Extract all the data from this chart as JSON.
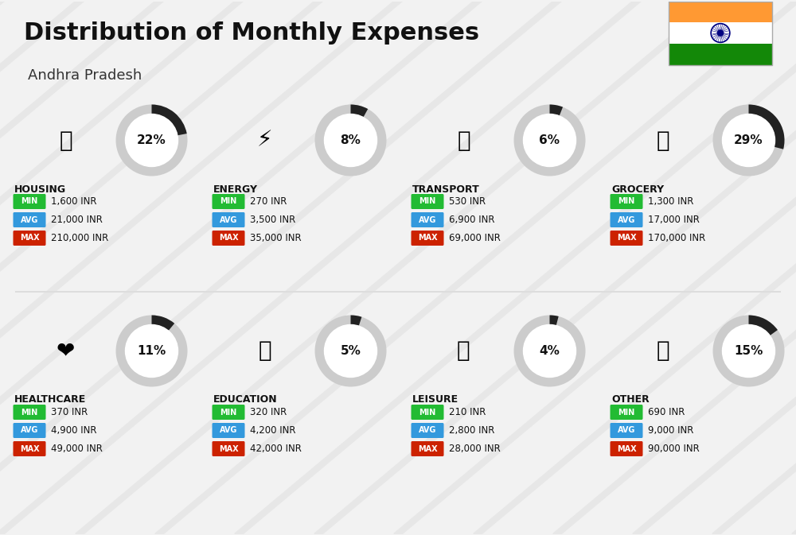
{
  "title": "Distribution of Monthly Expenses",
  "subtitle": "Andhra Pradesh",
  "background_color": "#f2f2f2",
  "categories": [
    {
      "name": "HOUSING",
      "percent": 22,
      "min_val": "1,600 INR",
      "avg_val": "21,000 INR",
      "max_val": "210,000 INR",
      "icon": "🏙",
      "row": 0,
      "col": 0
    },
    {
      "name": "ENERGY",
      "percent": 8,
      "min_val": "270 INR",
      "avg_val": "3,500 INR",
      "max_val": "35,000 INR",
      "icon": "⚡",
      "row": 0,
      "col": 1
    },
    {
      "name": "TRANSPORT",
      "percent": 6,
      "min_val": "530 INR",
      "avg_val": "6,900 INR",
      "max_val": "69,000 INR",
      "icon": "🚌",
      "row": 0,
      "col": 2
    },
    {
      "name": "GROCERY",
      "percent": 29,
      "min_val": "1,300 INR",
      "avg_val": "17,000 INR",
      "max_val": "170,000 INR",
      "icon": "🛒",
      "row": 0,
      "col": 3
    },
    {
      "name": "HEALTHCARE",
      "percent": 11,
      "min_val": "370 INR",
      "avg_val": "4,900 INR",
      "max_val": "49,000 INR",
      "icon": "❤️",
      "row": 1,
      "col": 0
    },
    {
      "name": "EDUCATION",
      "percent": 5,
      "min_val": "320 INR",
      "avg_val": "4,200 INR",
      "max_val": "42,000 INR",
      "icon": "🎓",
      "row": 1,
      "col": 1
    },
    {
      "name": "LEISURE",
      "percent": 4,
      "min_val": "210 INR",
      "avg_val": "2,800 INR",
      "max_val": "28,000 INR",
      "icon": "🛍️",
      "row": 1,
      "col": 2
    },
    {
      "name": "OTHER",
      "percent": 15,
      "min_val": "690 INR",
      "avg_val": "9,000 INR",
      "max_val": "90,000 INR",
      "icon": "💰",
      "row": 1,
      "col": 3
    }
  ],
  "min_color": "#22bb33",
  "avg_color": "#3399dd",
  "max_color": "#cc2200",
  "arc_filled": "#222222",
  "arc_empty": "#cccccc",
  "stripe_color": "#e0e0e0",
  "flag_colors": [
    "#FF9933",
    "#FFFFFF",
    "#138808"
  ],
  "chakra_color": "#000080"
}
